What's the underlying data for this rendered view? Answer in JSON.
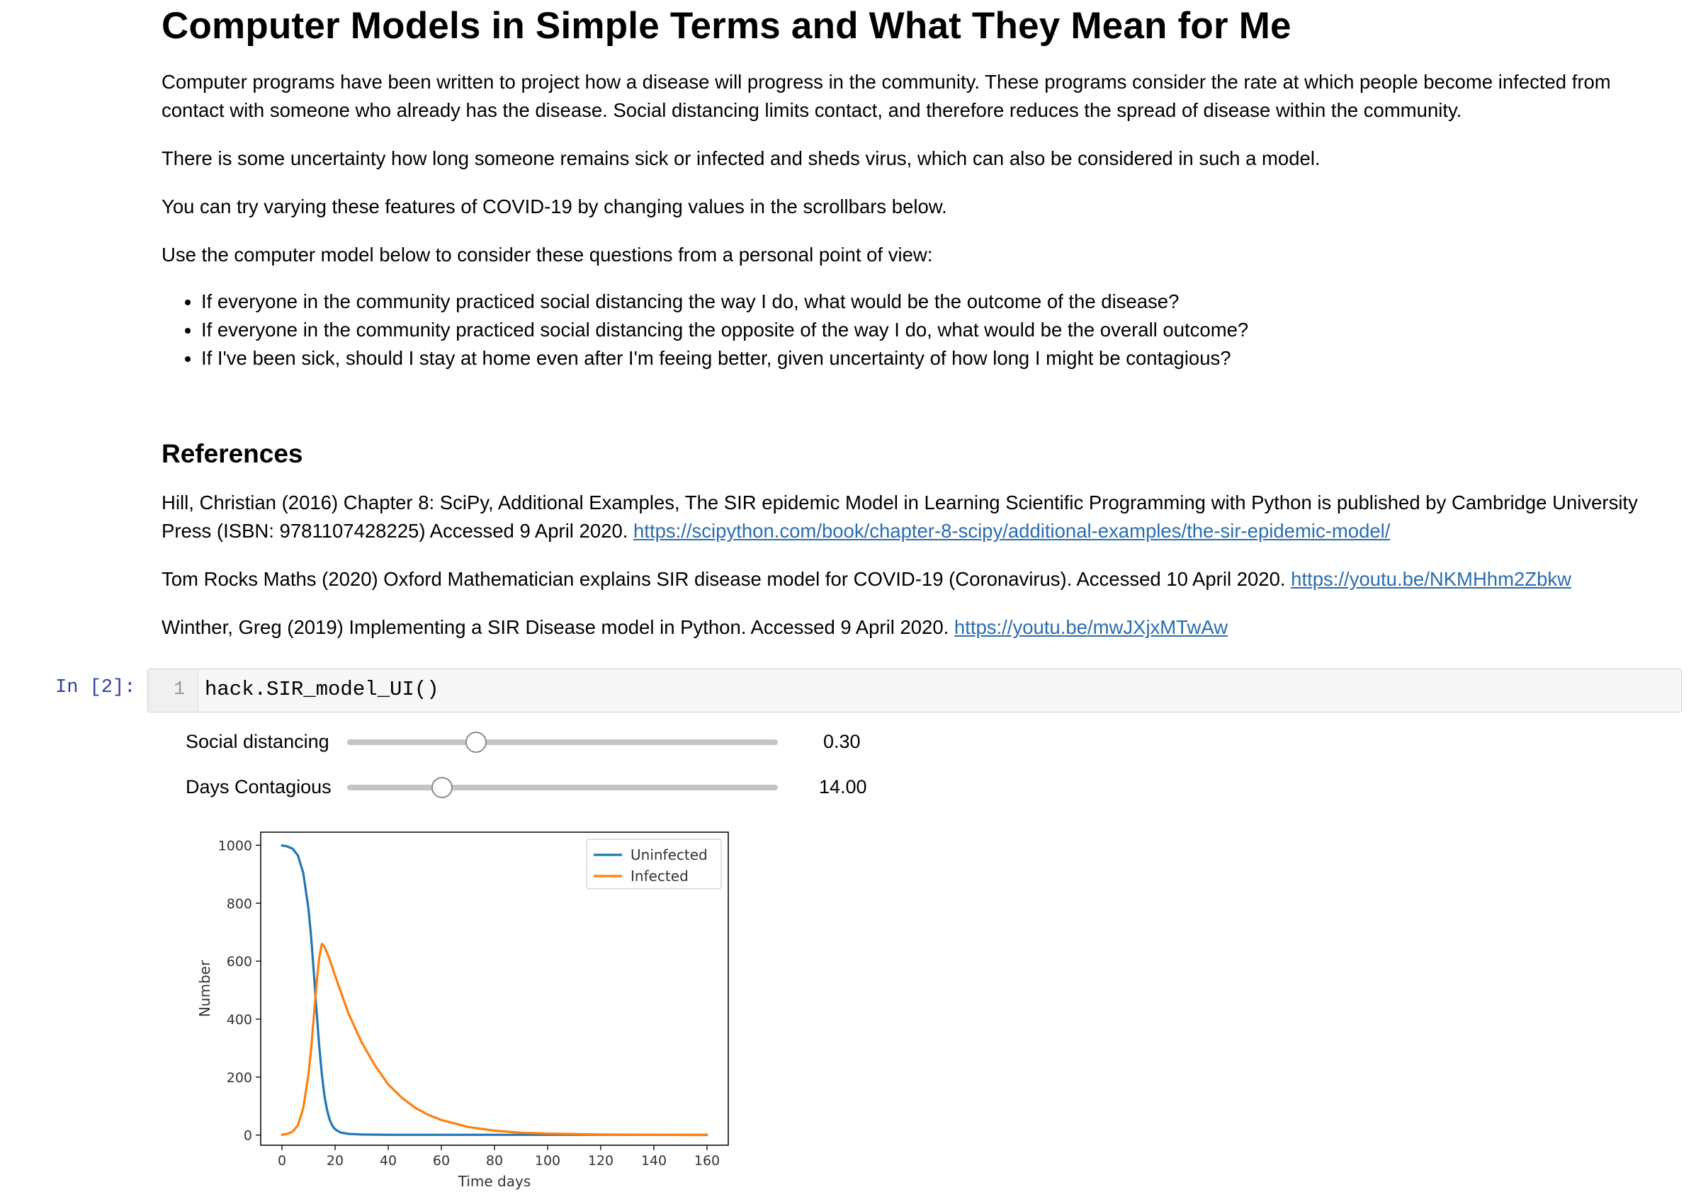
{
  "markdown": {
    "title": "Computer Models in Simple Terms and What They Mean for Me",
    "paragraphs": [
      "Computer programs have been written to project how a disease will progress in the community. These programs consider the rate at which people become infected from contact with someone who already has the disease. Social distancing limits contact, and therefore reduces the spread of disease within the community.",
      "There is some uncertainty how long someone remains sick or infected and sheds virus, which can also be considered in such a model.",
      "You can try varying these features of COVID-19 by changing values in the scrollbars below.",
      "Use the computer model below to consider these questions from a personal point of view:"
    ],
    "bullets": [
      "If everyone in the community practiced social distancing the way I do, what would be the outcome of the disease?",
      "If everyone in the community practiced social distancing the opposite of the way I do, what would be the overall outcome?",
      "If I've been sick, should I stay at home even after I'm feeing better, given uncertainty of how long I might be contagious?"
    ],
    "references_heading": "References",
    "references": [
      {
        "text": "Hill, Christian (2016) Chapter 8: SciPy, Additional Examples, The SIR epidemic Model in Learning Scientific Programming with Python is published by Cambridge University Press (ISBN: 9781107428225) Accessed 9 April 2020. ",
        "link": "https://scipython.com/book/chapter-8-scipy/additional-examples/the-sir-epidemic-model/"
      },
      {
        "text": "Tom Rocks Maths (2020) Oxford Mathematician explains SIR disease model for COVID-19 (Coronavirus). Accessed 10 April 2020. ",
        "link": "https://youtu.be/NKMHhm2Zbkw"
      },
      {
        "text": "Winther, Greg (2019) Implementing a SIR Disease model in Python. Accessed 9 April 2020. ",
        "link": "https://youtu.be/mwJXjxMTwAw"
      }
    ]
  },
  "cell": {
    "prompt": "In [2]:",
    "line_number": "1",
    "code": "hack.SIR_model_UI()"
  },
  "widgets": [
    {
      "label": "Social distancing",
      "value": 0.3,
      "display": "0.30",
      "min": 0,
      "max": 1
    },
    {
      "label": "Days Contagious",
      "value": 14.0,
      "display": "14.00",
      "min": 1,
      "max": 60
    }
  ],
  "chart_data": {
    "type": "line",
    "xlabel": "Time days",
    "ylabel": "Number",
    "xlim": [
      -8,
      168
    ],
    "ylim": [
      -35,
      1045
    ],
    "xticks": [
      0,
      20,
      40,
      60,
      80,
      100,
      120,
      140,
      160
    ],
    "yticks": [
      0,
      200,
      400,
      600,
      800,
      1000
    ],
    "legend_position": "top-right",
    "colors": {
      "Uninfected": "#1f77b4",
      "Infected": "#ff7f0e"
    },
    "series": [
      {
        "name": "Uninfected",
        "x": [
          0,
          2,
          4,
          6,
          8,
          10,
          11,
          12,
          13,
          14,
          15,
          16,
          17,
          18,
          19,
          20,
          22,
          25,
          30,
          40,
          60,
          100,
          160
        ],
        "y": [
          999,
          996,
          988,
          965,
          905,
          780,
          680,
          560,
          430,
          310,
          210,
          135,
          85,
          52,
          32,
          20,
          9,
          4,
          2,
          1,
          1,
          1,
          1
        ]
      },
      {
        "name": "Infected",
        "x": [
          0,
          2,
          4,
          6,
          8,
          10,
          11,
          12,
          13,
          14,
          15,
          16,
          18,
          20,
          25,
          30,
          35,
          40,
          45,
          50,
          55,
          60,
          70,
          80,
          90,
          100,
          120,
          140,
          160
        ],
        "y": [
          1,
          4,
          12,
          34,
          92,
          210,
          300,
          410,
          520,
          610,
          660,
          650,
          605,
          550,
          420,
          320,
          240,
          175,
          130,
          95,
          70,
          52,
          28,
          15,
          8,
          5,
          2,
          1,
          0
        ]
      }
    ]
  }
}
